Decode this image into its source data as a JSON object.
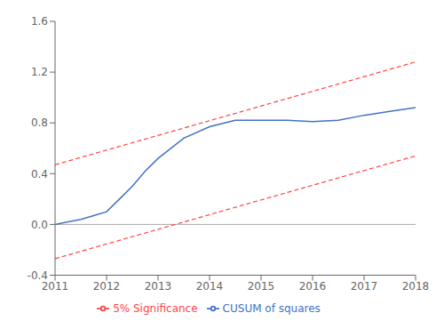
{
  "chart_data": {
    "type": "line",
    "series": [
      {
        "name": "CUSUM of squares",
        "color": "#4472C4",
        "line_style": "solid",
        "x": [
          2011,
          2011.25,
          2011.5,
          2011.75,
          2012,
          2012.25,
          2012.5,
          2012.75,
          2013,
          2013.5,
          2014,
          2014.5,
          2015,
          2015.5,
          2016,
          2016.5,
          2017,
          2017.5,
          2018
        ],
        "values": [
          0.0,
          0.02,
          0.04,
          0.07,
          0.1,
          0.2,
          0.3,
          0.42,
          0.52,
          0.68,
          0.77,
          0.82,
          0.82,
          0.82,
          0.81,
          0.82,
          0.86,
          0.89,
          0.92
        ]
      },
      {
        "name": "5% Significance",
        "color": "#FF4444",
        "line_style": "dashed",
        "x": [
          2011,
          2018
        ],
        "values": [
          0.47,
          1.28
        ]
      },
      {
        "name": "5% Significance",
        "color": "#FF4444",
        "line_style": "dashed",
        "x": [
          2011,
          2018
        ],
        "values": [
          -0.27,
          0.54
        ]
      }
    ],
    "hline": {
      "y": 0.0,
      "color": "#AAAAAA"
    },
    "xlim": [
      2011,
      2018
    ],
    "xticks": [
      2011,
      2012,
      2013,
      2014,
      2015,
      2016,
      2017,
      2018
    ],
    "ylim": [
      -0.4,
      1.6
    ],
    "yticks": [
      -0.4,
      {
        "value": 0.0,
        "label": "0.0"
      },
      0.4,
      0.8,
      1.2,
      1.6
    ],
    "grid": false,
    "legend": "bottom"
  }
}
